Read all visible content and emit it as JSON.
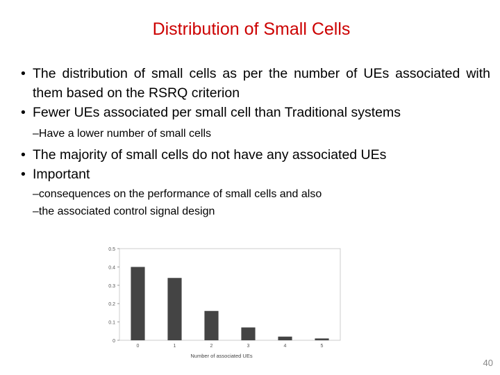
{
  "slide": {
    "title": "Distribution of Small Cells",
    "page_number": "40",
    "bullet_glyph": "•",
    "sub_glyph": "–",
    "bullets": [
      "The distribution of small cells as per the number of UEs associated with them based on the RSRQ criterion",
      "Fewer UEs associated per small cell than Traditional systems"
    ],
    "sub_bullets_1": [
      "Have a lower number of small cells"
    ],
    "bullets_2": [
      "The majority of small cells do not have any associated UEs",
      "Important"
    ],
    "sub_bullets_2": [
      "consequences on the performance of small cells and also",
      "the associated control signal design"
    ]
  },
  "chart_data": {
    "type": "bar",
    "categories": [
      "0",
      "1",
      "2",
      "3",
      "4",
      "5"
    ],
    "values": [
      0.4,
      0.34,
      0.16,
      0.07,
      0.02,
      0.01
    ],
    "title": "",
    "xlabel": "Number of associated UEs",
    "ylabel": "",
    "ylim": [
      0,
      0.5
    ],
    "yticks": [
      "0",
      "0.1",
      "0.2",
      "0.3",
      "0.4",
      "0.5"
    ],
    "grid": false,
    "bar_color": "#444444"
  }
}
